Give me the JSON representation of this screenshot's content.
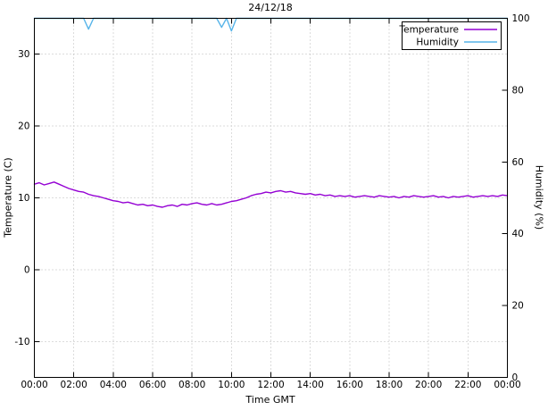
{
  "chart_data": {
    "type": "line",
    "title": "24/12/18",
    "xlabel": "Time GMT",
    "ylabel": "Temperature (C)",
    "y2label": "Humidity (%)",
    "grid": true,
    "legend_position": "top-right",
    "x_range": [
      0,
      24
    ],
    "x_ticks": [
      {
        "hour": 0,
        "label": "00:00"
      },
      {
        "hour": 2,
        "label": "02:00"
      },
      {
        "hour": 4,
        "label": "04:00"
      },
      {
        "hour": 6,
        "label": "06:00"
      },
      {
        "hour": 8,
        "label": "08:00"
      },
      {
        "hour": 10,
        "label": "10:00"
      },
      {
        "hour": 12,
        "label": "12:00"
      },
      {
        "hour": 14,
        "label": "14:00"
      },
      {
        "hour": 16,
        "label": "16:00"
      },
      {
        "hour": 18,
        "label": "18:00"
      },
      {
        "hour": 20,
        "label": "20:00"
      },
      {
        "hour": 22,
        "label": "22:00"
      },
      {
        "hour": 24,
        "label": "00:00"
      }
    ],
    "y_left": {
      "min": -15,
      "max": 35,
      "ticks": [
        -10,
        0,
        10,
        20,
        30
      ]
    },
    "y_right": {
      "min": 0,
      "max": 100,
      "ticks": [
        0,
        20,
        40,
        60,
        80,
        100
      ]
    },
    "grid_color": "#b8b8b8",
    "series": [
      {
        "name": "Temperature",
        "axis": "left",
        "color": "#9400d3",
        "x": [
          0,
          0.25,
          0.5,
          0.75,
          1,
          1.25,
          1.5,
          1.75,
          2,
          2.25,
          2.5,
          2.75,
          3,
          3.25,
          3.5,
          3.75,
          4,
          4.25,
          4.5,
          4.75,
          5,
          5.25,
          5.5,
          5.75,
          6,
          6.25,
          6.5,
          6.75,
          7,
          7.25,
          7.5,
          7.75,
          8,
          8.25,
          8.5,
          8.75,
          9,
          9.25,
          9.5,
          9.75,
          10,
          10.25,
          10.5,
          10.75,
          11,
          11.25,
          11.5,
          11.75,
          12,
          12.25,
          12.5,
          12.75,
          13,
          13.25,
          13.5,
          13.75,
          14,
          14.25,
          14.5,
          14.75,
          15,
          15.25,
          15.5,
          15.75,
          16,
          16.25,
          16.5,
          16.75,
          17,
          17.25,
          17.5,
          17.75,
          18,
          18.25,
          18.5,
          18.75,
          19,
          19.25,
          19.5,
          19.75,
          20,
          20.25,
          20.5,
          20.75,
          21,
          21.25,
          21.5,
          21.75,
          22,
          22.25,
          22.5,
          22.75,
          23,
          23.25,
          23.5,
          23.75,
          24
        ],
        "values": [
          11.9,
          12.1,
          11.8,
          12.0,
          12.2,
          11.9,
          11.6,
          11.3,
          11.1,
          10.9,
          10.8,
          10.5,
          10.3,
          10.2,
          10.0,
          9.8,
          9.6,
          9.5,
          9.3,
          9.4,
          9.2,
          9.0,
          9.1,
          8.9,
          9.0,
          8.8,
          8.7,
          8.9,
          9.0,
          8.8,
          9.1,
          9.0,
          9.2,
          9.3,
          9.1,
          9.0,
          9.2,
          9.0,
          9.1,
          9.3,
          9.5,
          9.6,
          9.8,
          10.0,
          10.3,
          10.5,
          10.6,
          10.8,
          10.7,
          10.9,
          11.0,
          10.8,
          10.9,
          10.7,
          10.6,
          10.5,
          10.6,
          10.4,
          10.5,
          10.3,
          10.4,
          10.2,
          10.3,
          10.2,
          10.3,
          10.1,
          10.2,
          10.3,
          10.2,
          10.1,
          10.3,
          10.2,
          10.1,
          10.2,
          10.0,
          10.2,
          10.1,
          10.3,
          10.2,
          10.1,
          10.2,
          10.3,
          10.1,
          10.2,
          10.0,
          10.2,
          10.1,
          10.2,
          10.3,
          10.1,
          10.2,
          10.3,
          10.2,
          10.3,
          10.2,
          10.4,
          10.3
        ]
      },
      {
        "name": "Humidity",
        "axis": "right",
        "color": "#56b4e9",
        "x": [
          0,
          0.25,
          0.5,
          0.75,
          1,
          1.25,
          1.5,
          1.75,
          2,
          2.25,
          2.5,
          2.75,
          3,
          3.25,
          3.5,
          3.75,
          4,
          4.25,
          4.5,
          4.75,
          5,
          5.25,
          5.5,
          5.75,
          6,
          6.25,
          6.5,
          6.75,
          7,
          7.25,
          7.5,
          7.75,
          8,
          8.25,
          8.5,
          8.75,
          9,
          9.25,
          9.5,
          9.75,
          10,
          10.25,
          10.5,
          10.75,
          11,
          11.25,
          11.5,
          11.75,
          12,
          12.25,
          12.5,
          12.75,
          13,
          13.25,
          13.5,
          13.75,
          14,
          14.25,
          14.5,
          14.75,
          15,
          15.25,
          15.5,
          15.75,
          16,
          16.25,
          16.5,
          16.75,
          17,
          17.25,
          17.5,
          17.75,
          18,
          18.25,
          18.5,
          18.75,
          19,
          19.25,
          19.5,
          19.75,
          20,
          20.25,
          20.5,
          20.75,
          21,
          21.25,
          21.5,
          21.75,
          22,
          22.25,
          22.5,
          22.75,
          23,
          23.25,
          23.5,
          23.75,
          24
        ],
        "values": [
          100,
          100,
          100,
          100,
          100,
          100,
          100,
          100,
          100,
          100,
          100,
          97,
          100,
          100,
          100,
          100,
          100,
          100,
          100,
          100,
          100,
          100,
          100,
          100,
          100,
          100,
          100,
          100,
          100,
          100,
          100,
          100,
          100,
          100,
          100,
          100,
          100,
          100,
          97.5,
          100,
          96.5,
          100,
          100,
          100,
          100,
          100,
          100,
          100,
          100,
          100,
          100,
          100,
          100,
          100,
          100,
          100,
          100,
          100,
          100,
          100,
          100,
          100,
          100,
          100,
          100,
          100,
          100,
          100,
          100,
          100,
          100,
          100,
          100,
          100,
          100,
          100,
          100,
          100,
          100,
          100,
          100,
          100,
          100,
          100,
          100,
          100,
          100,
          100,
          100,
          100,
          100,
          100,
          100,
          100,
          100,
          100,
          100
        ]
      }
    ]
  }
}
